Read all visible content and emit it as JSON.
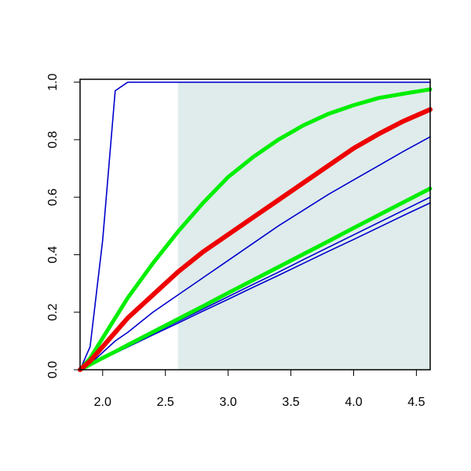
{
  "chart_data": {
    "type": "line",
    "x": [
      1.82,
      1.9,
      2.0,
      2.1,
      2.2,
      2.4,
      2.6,
      2.8,
      3.0,
      3.2,
      3.4,
      3.6,
      3.8,
      4.0,
      4.2,
      4.4,
      4.61
    ],
    "series": [
      {
        "color": "#0000cd",
        "width": 1.6,
        "values": [
          0,
          0.08,
          0.45,
          0.97,
          1,
          1,
          1,
          1,
          1,
          1,
          1,
          1,
          1,
          1,
          1,
          1,
          1
        ]
      },
      {
        "color": "#0000cd",
        "width": 1.6,
        "values": [
          0,
          0.02,
          0.06,
          0.1,
          0.13,
          0.2,
          0.26,
          0.32,
          0.38,
          0.44,
          0.5,
          0.555,
          0.61,
          0.66,
          0.71,
          0.76,
          0.81
        ]
      },
      {
        "color": "#0000cd",
        "width": 1.6,
        "values": [
          0,
          0.017,
          0.039,
          0.06,
          0.082,
          0.125,
          0.168,
          0.211,
          0.254,
          0.297,
          0.339,
          0.383,
          0.426,
          0.469,
          0.512,
          0.555,
          0.6
        ]
      },
      {
        "color": "#0000cd",
        "width": 1.6,
        "values": [
          0,
          0.017,
          0.037,
          0.058,
          0.079,
          0.121,
          0.162,
          0.204,
          0.245,
          0.287,
          0.328,
          0.37,
          0.412,
          0.453,
          0.495,
          0.537,
          0.58
        ]
      },
      {
        "color": "#00ee00",
        "width": 5,
        "values": [
          0,
          0.018,
          0.041,
          0.063,
          0.086,
          0.131,
          0.176,
          0.221,
          0.267,
          0.312,
          0.357,
          0.402,
          0.447,
          0.493,
          0.538,
          0.583,
          0.63
        ]
      },
      {
        "color": "#00ee00",
        "width": 5,
        "values": [
          0,
          0.04,
          0.11,
          0.18,
          0.25,
          0.37,
          0.48,
          0.58,
          0.67,
          0.74,
          0.8,
          0.85,
          0.89,
          0.92,
          0.945,
          0.96,
          0.975
        ]
      },
      {
        "color": "#ee0000",
        "width": 6,
        "values": [
          0,
          0.03,
          0.08,
          0.13,
          0.18,
          0.26,
          0.34,
          0.41,
          0.47,
          0.53,
          0.59,
          0.65,
          0.71,
          0.77,
          0.82,
          0.865,
          0.905
        ]
      }
    ],
    "shaded_region": {
      "x": [
        2.6,
        4.61
      ],
      "y": [
        0,
        1
      ],
      "color": "#dfeceb"
    },
    "xlim": [
      1.82,
      4.61
    ],
    "ylim": [
      0,
      1.01
    ],
    "xticks": [
      {
        "value": 2.0,
        "label": "2.0"
      },
      2.5,
      {
        "value": 3.0,
        "label": "3.0"
      },
      3.5,
      {
        "value": 4.0,
        "label": "4.0"
      },
      4.5
    ],
    "yticks": [
      {
        "value": 0,
        "label": "0.0"
      },
      0.2,
      0.4,
      0.6,
      0.8,
      {
        "value": 1.0,
        "label": "1.0"
      }
    ]
  }
}
